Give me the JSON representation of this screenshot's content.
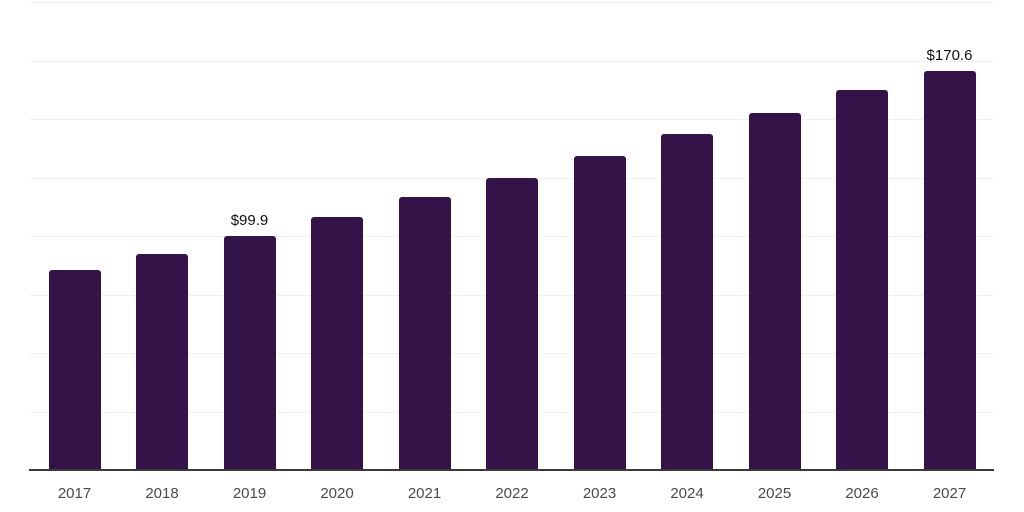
{
  "chart_data": {
    "type": "bar",
    "title": "",
    "xlabel": "",
    "ylabel": "",
    "categories": [
      "2017",
      "2018",
      "2019",
      "2020",
      "2021",
      "2022",
      "2023",
      "2024",
      "2025",
      "2026",
      "2027"
    ],
    "values": [
      85.3,
      92.5,
      99.9,
      108.0,
      116.5,
      124.7,
      134.2,
      143.6,
      152.4,
      162.3,
      170.6
    ],
    "data_labels": [
      "",
      "",
      "$99.9",
      "",
      "",
      "",
      "",
      "",
      "",
      "",
      "$170.6"
    ],
    "ylim": [
      0,
      200
    ],
    "gridline_step": 25,
    "grid": "horizontal-only",
    "legend_position": "none",
    "bar_color": "#341349",
    "axis_color": "#3a3a3a",
    "gridline_color": "#f2f2f2",
    "value_label_color": "#111111",
    "tick_label_color": "#4a4a4a"
  }
}
